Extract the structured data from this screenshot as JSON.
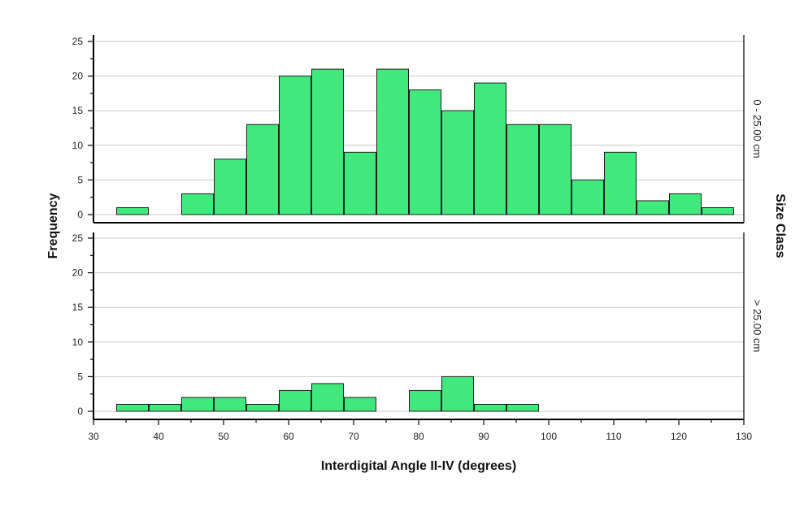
{
  "chart_data": {
    "type": "bar",
    "subtype": "faceted-histogram",
    "xlabel": "Interdigital Angle II-IV (degrees)",
    "ylabel": "Frequency",
    "facet_label": "Size Class",
    "bar_color": "#40e97c",
    "xlim": [
      30,
      130
    ],
    "ylim": [
      0,
      26
    ],
    "x_ticks": [
      30,
      40,
      50,
      60,
      70,
      80,
      90,
      100,
      110,
      120,
      130
    ],
    "y_ticks": [
      0,
      5,
      10,
      15,
      20,
      25
    ],
    "grid": "horizontal",
    "bin_width": 5,
    "panels": [
      {
        "name": "0 - 25.00 cm",
        "bins": [
          {
            "start": 33.5,
            "end": 38.5,
            "count": 1
          },
          {
            "start": 43.5,
            "end": 48.5,
            "count": 3
          },
          {
            "start": 48.5,
            "end": 53.5,
            "count": 8
          },
          {
            "start": 53.5,
            "end": 58.5,
            "count": 13
          },
          {
            "start": 58.5,
            "end": 63.5,
            "count": 20
          },
          {
            "start": 63.5,
            "end": 68.5,
            "count": 21
          },
          {
            "start": 68.5,
            "end": 73.5,
            "count": 9
          },
          {
            "start": 73.5,
            "end": 78.5,
            "count": 21
          },
          {
            "start": 78.5,
            "end": 83.5,
            "count": 18
          },
          {
            "start": 83.5,
            "end": 88.5,
            "count": 15
          },
          {
            "start": 88.5,
            "end": 93.5,
            "count": 19
          },
          {
            "start": 93.5,
            "end": 98.5,
            "count": 13
          },
          {
            "start": 98.5,
            "end": 103.5,
            "count": 13
          },
          {
            "start": 103.5,
            "end": 108.5,
            "count": 5
          },
          {
            "start": 108.5,
            "end": 113.5,
            "count": 9
          },
          {
            "start": 113.5,
            "end": 118.5,
            "count": 2
          },
          {
            "start": 118.5,
            "end": 123.5,
            "count": 3
          },
          {
            "start": 123.5,
            "end": 128.5,
            "count": 1
          }
        ]
      },
      {
        "name": "> 25.00 cm",
        "bins": [
          {
            "start": 33.5,
            "end": 38.5,
            "count": 1
          },
          {
            "start": 38.5,
            "end": 43.5,
            "count": 1
          },
          {
            "start": 43.5,
            "end": 48.5,
            "count": 2
          },
          {
            "start": 48.5,
            "end": 53.5,
            "count": 2
          },
          {
            "start": 53.5,
            "end": 58.5,
            "count": 1
          },
          {
            "start": 58.5,
            "end": 63.5,
            "count": 3
          },
          {
            "start": 63.5,
            "end": 68.5,
            "count": 4
          },
          {
            "start": 68.5,
            "end": 73.5,
            "count": 2
          },
          {
            "start": 78.5,
            "end": 83.5,
            "count": 3
          },
          {
            "start": 83.5,
            "end": 88.5,
            "count": 5
          },
          {
            "start": 88.5,
            "end": 93.5,
            "count": 1
          },
          {
            "start": 93.5,
            "end": 98.5,
            "count": 1
          }
        ]
      }
    ]
  }
}
